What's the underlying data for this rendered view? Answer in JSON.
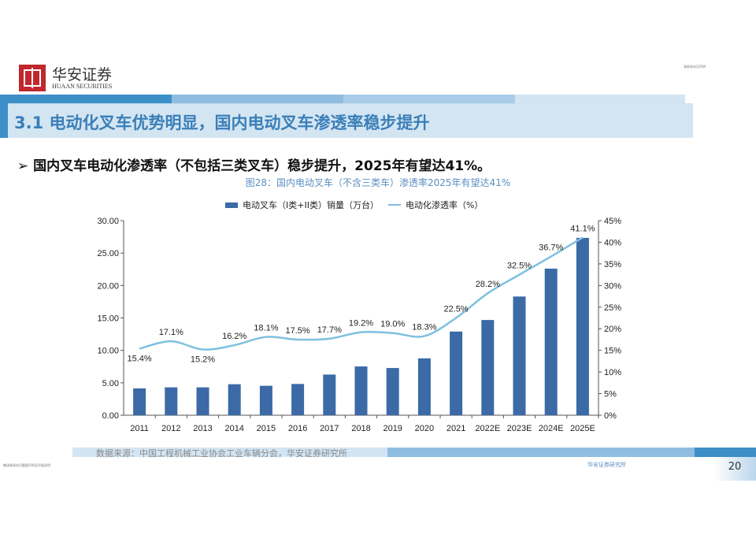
{
  "header": {
    "logo_cn": "华安证券",
    "logo_en": "HUAAN SECURITIES",
    "top_right_note": "请参阅末页声明"
  },
  "title": "3.1 电动化叉车优势明显，国内电动叉车渗透率稳步提升",
  "bullet": "国内叉车电动化渗透率（不包括三类叉车）稳步提升，2025年有望达41%。",
  "caption": "图28：国内电动叉车（不含三类车）渗透率2025年有望达41%",
  "colors": {
    "bar": "#3b6aa6",
    "line": "#7fc0e0",
    "accent": "#3a7fb8"
  },
  "chart_data": {
    "type": "bar+line",
    "categories": [
      "2011",
      "2012",
      "2013",
      "2014",
      "2015",
      "2016",
      "2017",
      "2018",
      "2019",
      "2020",
      "2021",
      "2022E",
      "2023E",
      "2024E",
      "2025E"
    ],
    "series": [
      {
        "name": "电动叉车（I类+II类）销量（万台）",
        "type": "bar",
        "axis": "left",
        "values": [
          4.14,
          4.3,
          4.3,
          4.78,
          4.54,
          4.82,
          6.27,
          7.52,
          7.28,
          8.77,
          12.9,
          14.68,
          18.3,
          22.6,
          27.34
        ]
      },
      {
        "name": "电动化渗透率（%）",
        "type": "line",
        "axis": "right",
        "values": [
          15.4,
          17.1,
          15.2,
          16.2,
          18.1,
          17.5,
          17.7,
          19.2,
          19.0,
          18.3,
          22.5,
          28.2,
          32.5,
          36.7,
          41.1
        ],
        "labels": [
          "15.4%",
          "17.1%",
          "15.2%",
          "16.2%",
          "18.1%",
          "17.5%",
          "17.7%",
          "19.2%",
          "19.0%",
          "18.3%",
          "22.5%",
          "28.2%",
          "32.5%",
          "36.7%",
          "41.1%"
        ]
      }
    ],
    "y_left": {
      "range": [
        0,
        30
      ],
      "ticks": [
        "0.00",
        "5.00",
        "10.00",
        "15.00",
        "20.00",
        "25.00",
        "30.00"
      ]
    },
    "y_right": {
      "range": [
        0,
        45
      ],
      "ticks": [
        "0%",
        "5%",
        "10%",
        "15%",
        "20%",
        "25%",
        "30%",
        "35%",
        "40%",
        "45%"
      ]
    },
    "grid": false,
    "legend_placement": "top"
  },
  "source": "数据来源：中国工程机械工业协会工业车辆分会，华安证券研究所",
  "footer": {
    "left_note": "敬请参阅末页重要声明及评级说明",
    "right": "华安证券研究所",
    "page": "20"
  }
}
